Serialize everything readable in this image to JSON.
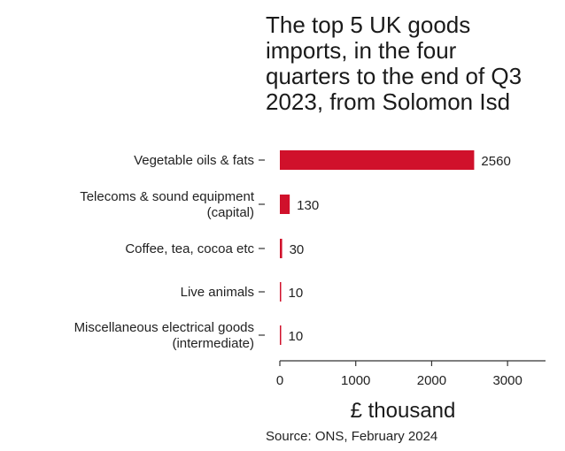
{
  "title_lines": [
    "The top 5 UK goods",
    "imports, in the four",
    "quarters to the end of Q3",
    "2023, from Solomon Isd"
  ],
  "source": "Source: ONS, February 2024",
  "colors": {
    "bar": "#d0112b",
    "axis": "#333333",
    "text": "#222222"
  },
  "chart_data": {
    "type": "bar",
    "orientation": "horizontal",
    "title": "The top 5 UK goods imports, in the four quarters to the end of Q3 2023, from Solomon Isd",
    "categories": [
      [
        "Vegetable oils & fats"
      ],
      [
        "Telecoms & sound equipment",
        "(capital)"
      ],
      [
        "Coffee, tea, cocoa etc"
      ],
      [
        "Live animals"
      ],
      [
        "Miscellaneous electrical goods",
        "(intermediate)"
      ]
    ],
    "values": [
      2560,
      130,
      30,
      10,
      10
    ],
    "value_labels": [
      "2560",
      "130",
      "30",
      "10",
      "10"
    ],
    "xlabel": "£ thousand",
    "xlim": [
      0,
      3500
    ],
    "xticks": [
      0,
      1000,
      2000,
      3000
    ],
    "xtick_labels": [
      "0",
      "1000",
      "2000",
      "3000"
    ],
    "grid": false,
    "legend": "none"
  }
}
